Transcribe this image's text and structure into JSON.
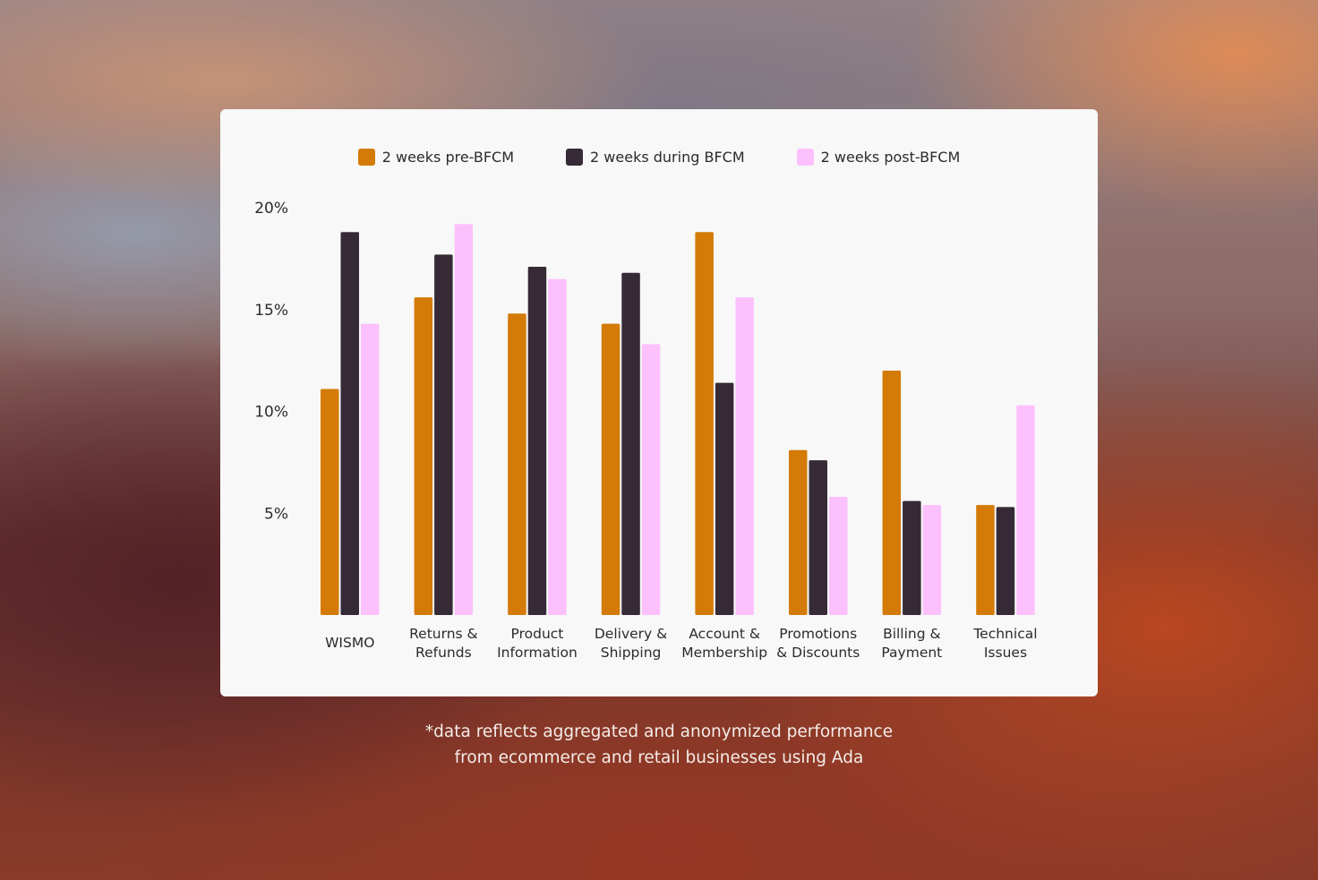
{
  "chart_data": {
    "type": "bar",
    "categories": [
      [
        "WISMO"
      ],
      [
        "Returns &",
        "Refunds"
      ],
      [
        "Product",
        "Information"
      ],
      [
        "Delivery &",
        "Shipping"
      ],
      [
        "Account &",
        "Membership"
      ],
      [
        "Promotions",
        "& Discounts"
      ],
      [
        "Billing &",
        "Payment"
      ],
      [
        "Technical",
        "Issues"
      ]
    ],
    "series": [
      {
        "name": "2 weeks pre-BFCM",
        "color": "#d47a06",
        "values": [
          11.1,
          15.6,
          14.8,
          14.3,
          18.8,
          8.1,
          12.0,
          5.4
        ]
      },
      {
        "name": "2 weeks during BFCM",
        "color": "#362a36",
        "values": [
          18.8,
          17.7,
          17.1,
          16.8,
          11.4,
          7.6,
          5.6,
          5.3
        ]
      },
      {
        "name": "2 weeks post-BFCM",
        "color": "#fcc1fc",
        "values": [
          14.3,
          19.2,
          16.5,
          13.3,
          15.6,
          5.8,
          5.4,
          10.3
        ]
      }
    ],
    "yticks": [
      {
        "value": 20,
        "label": "20%"
      },
      {
        "value": 15,
        "label": "15%"
      },
      {
        "value": 10,
        "label": "10%"
      },
      {
        "value": 5,
        "label": "5%"
      }
    ],
    "ylim": [
      0,
      20
    ],
    "legend_position": "top-center",
    "grid": false
  },
  "footnote": {
    "line1": "*data reflects aggregated and anonymized performance",
    "line2": "from ecommerce and retail businesses using Ada"
  }
}
